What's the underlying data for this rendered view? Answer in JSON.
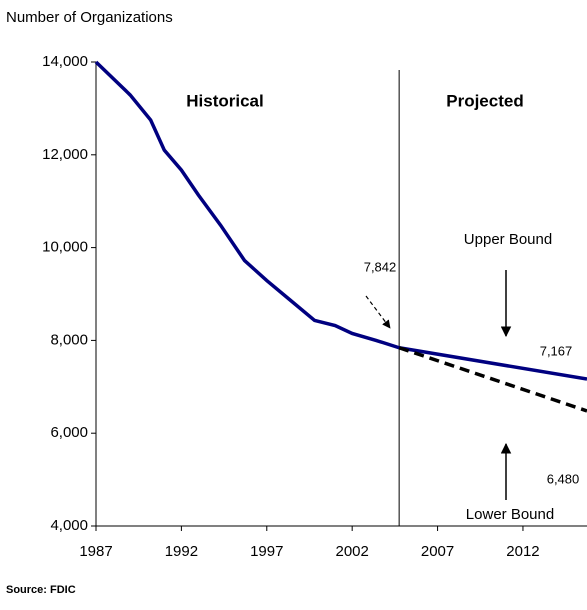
{
  "chart_data": {
    "type": "line",
    "title": "Number of Organizations",
    "source": "Source: FDIC",
    "regions": [
      "Historical",
      "Projected"
    ],
    "divider": 2004.75,
    "series": [
      {
        "color": "#000080",
        "x": [
          1987,
          1989,
          1990.2,
          1991,
          1992,
          1993,
          1994.3,
          1995.7,
          1997,
          1998.4,
          1999.8,
          2001,
          2002,
          2003.4,
          2004.75
        ],
        "values": [
          14000,
          13290,
          12750,
          12100,
          11670,
          11130,
          10480,
          9720,
          9290,
          8860,
          8430,
          8320,
          8150,
          8000,
          7842
        ]
      },
      {
        "name": "Upper Bound",
        "color": "#000080",
        "x": [
          2004.75,
          2015.75
        ],
        "values": [
          7842,
          7167
        ],
        "value_labels": [
          "7,842",
          "7,167"
        ]
      },
      {
        "name": "Lower Bound",
        "color": "#000000",
        "dashed": true,
        "x": [
          2004.75,
          2015.75
        ],
        "values": [
          7842,
          6480
        ],
        "value_labels": [
          null,
          "6,480"
        ]
      }
    ],
    "xlim": [
      1987,
      2015.75
    ],
    "xticks": [
      1987,
      1992,
      1997,
      2002,
      2007,
      2012
    ],
    "ylim": [
      4000,
      14000
    ],
    "yticks": [
      {
        "value": 4000,
        "label": "4,000"
      },
      {
        "value": 6000,
        "label": "6,000"
      },
      {
        "value": 8000,
        "label": "8,000"
      },
      {
        "value": 10000,
        "label": "10,000"
      },
      {
        "value": 12000,
        "label": "12,000"
      },
      {
        "value": 14000,
        "label": "14,000"
      }
    ],
    "grid": false
  }
}
